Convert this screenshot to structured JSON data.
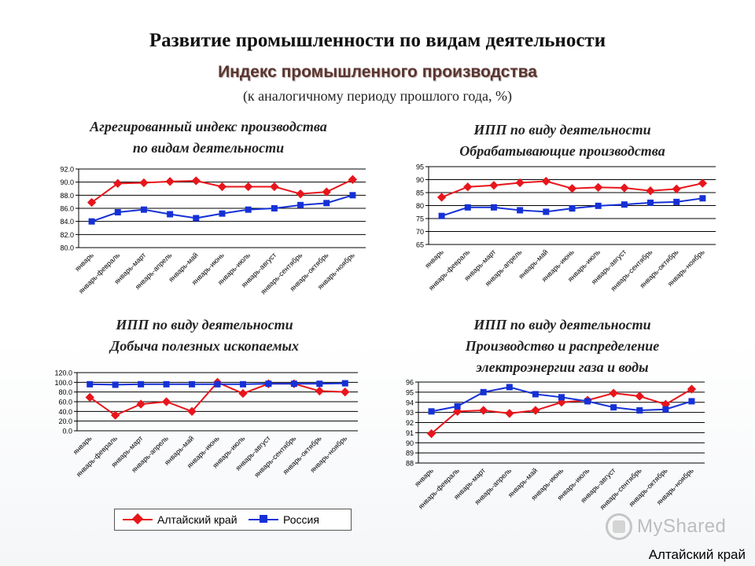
{
  "header": {
    "title": "Развитие промышленности по видам деятельности",
    "subtitle": "Индекс промышленного производства",
    "note": "(к аналогичному периоду прошлого года, %)"
  },
  "legend": {
    "altai": "Алтайский край",
    "russia": "Россия"
  },
  "footer": {
    "watermark": "MyShared",
    "region": "Алтайский край"
  },
  "colors": {
    "altai": "#e8151b",
    "russia": "#1531d6",
    "grid": "#000000"
  },
  "chart_data": [
    {
      "type": "line",
      "title_lines": [
        "Агрегированный индекс производства",
        "по видам деятельности"
      ],
      "categories": [
        "январь",
        "январь-февраль",
        "январь-март",
        "январь-апрель",
        "январь-май",
        "январь-июнь",
        "январь-июль",
        "январь-август",
        "январь-сентябрь",
        "январь-октябрь",
        "январь-ноябрь"
      ],
      "ylim": [
        80,
        92
      ],
      "ystep": 2,
      "ydecimals": 1,
      "grid": true,
      "series": [
        {
          "name": "Алтайский край",
          "values": [
            86.9,
            89.8,
            89.9,
            90.1,
            90.2,
            89.3,
            89.3,
            89.3,
            88.2,
            88.5,
            90.4
          ]
        },
        {
          "name": "Россия",
          "values": [
            84.0,
            85.4,
            85.8,
            85.1,
            84.5,
            85.2,
            85.8,
            86.0,
            86.5,
            86.8,
            88.0
          ]
        }
      ]
    },
    {
      "type": "line",
      "title_lines": [
        "ИПП по виду деятельности",
        "Обрабатывающие производства"
      ],
      "categories": [
        "январь",
        "январь-февраль",
        "январь-март",
        "январь-апрель",
        "январь-май",
        "январь-июнь",
        "январь-июль",
        "январь-август",
        "январь-сентябрь",
        "январь-октябрь",
        "январь-ноябрь"
      ],
      "ylim": [
        65,
        95
      ],
      "ystep": 5,
      "ydecimals": 0,
      "grid": true,
      "series": [
        {
          "name": "Алтайский край",
          "values": [
            83.2,
            87.2,
            87.8,
            88.8,
            89.4,
            86.6,
            87.0,
            86.8,
            85.7,
            86.4,
            88.6
          ]
        },
        {
          "name": "Россия",
          "values": [
            76.0,
            79.3,
            79.3,
            78.2,
            77.6,
            78.9,
            79.9,
            80.4,
            81.1,
            81.4,
            82.8
          ]
        }
      ]
    },
    {
      "type": "line",
      "title_lines": [
        "ИПП по виду деятельности",
        "Добыча полезных ископаемых"
      ],
      "categories": [
        "январь",
        "январь-февраль",
        "январь-март",
        "январь-апрель",
        "январь-май",
        "январь-июнь",
        "январь-июль",
        "январь-август",
        "январь-сентябрь",
        "январь-октябрь",
        "январь-ноябрь"
      ],
      "ylim": [
        0,
        120
      ],
      "ystep": 20,
      "ydecimals": 1,
      "grid": true,
      "series": [
        {
          "name": "Алтайский край",
          "values": [
            69,
            32,
            55,
            60,
            40,
            100,
            77,
            97,
            97,
            82,
            80
          ]
        },
        {
          "name": "Россия",
          "values": [
            96,
            95,
            96,
            96,
            96,
            96,
            96,
            97,
            97,
            97,
            98
          ]
        }
      ]
    },
    {
      "type": "line",
      "title_lines": [
        "ИПП по виду деятельности",
        "Производство и распределение",
        "электроэнергии газа и воды"
      ],
      "categories": [
        "январь",
        "январь-февраль",
        "январь-март",
        "январь-апрель",
        "январь-май",
        "январь-июнь",
        "январь-июль",
        "январь-август",
        "январь-сентябрь",
        "январь-октябрь",
        "январь-ноябрь"
      ],
      "ylim": [
        88,
        96
      ],
      "ystep": 1,
      "ydecimals": 0,
      "grid": true,
      "series": [
        {
          "name": "Алтайский край",
          "values": [
            90.9,
            93.1,
            93.2,
            92.9,
            93.2,
            94.0,
            94.2,
            94.9,
            94.6,
            93.8,
            95.3
          ]
        },
        {
          "name": "Россия",
          "values": [
            93.1,
            93.6,
            95.0,
            95.5,
            94.8,
            94.5,
            94.1,
            93.5,
            93.2,
            93.3,
            94.1
          ]
        }
      ]
    }
  ]
}
